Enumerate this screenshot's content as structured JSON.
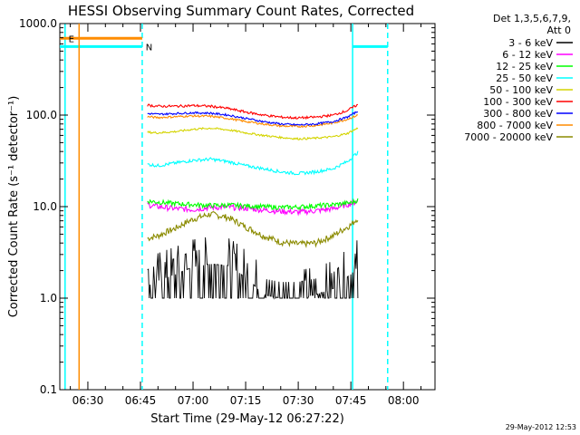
{
  "chart_data": {
    "type": "line",
    "title": "HESSI Observing Summary Count Rates, Corrected",
    "xlabel": "Start Time (29-May-12 06:27:22)",
    "ylabel": "Corrected Count Rate (s⁻¹ detector⁻¹)",
    "yscale": "log",
    "ylim": [
      0.1,
      1000.0
    ],
    "xlim": [
      "06:22",
      "08:09"
    ],
    "x_ticks": [
      "06:30",
      "06:45",
      "07:00",
      "07:15",
      "07:30",
      "07:45",
      "08:00"
    ],
    "y_ticks": [
      "0.1",
      "1.0",
      "10.0",
      "100.0",
      "1000.0"
    ],
    "legend": {
      "position": "right",
      "header": [
        "Det 1,3,5,6,7,9,",
        "Att 0"
      ]
    },
    "x_unit": "minutes after 06:00",
    "series": [
      {
        "name": "3 - 6 keV",
        "color": "#000000",
        "x": [
          47,
          50,
          55,
          60,
          65,
          70,
          73,
          76,
          80,
          85,
          90,
          95,
          100,
          105,
          107
        ],
        "y": [
          1.5,
          1.7,
          2.0,
          2.4,
          2.6,
          2.5,
          2.1,
          1.7,
          1.2,
          1.1,
          1.1,
          1.2,
          1.4,
          2.0,
          2.4
        ]
      },
      {
        "name": "6 - 12 keV",
        "color": "#ff00ff",
        "x": [
          47,
          50,
          55,
          60,
          65,
          70,
          75,
          80,
          85,
          90,
          95,
          100,
          105,
          107
        ],
        "y": [
          10.5,
          10.0,
          9.5,
          9.3,
          9.8,
          9.9,
          9.6,
          9.2,
          8.9,
          8.7,
          9.0,
          9.5,
          10.8,
          11.5
        ]
      },
      {
        "name": "12 - 25 keV",
        "color": "#00ff00",
        "x": [
          47,
          50,
          55,
          60,
          65,
          70,
          75,
          80,
          85,
          90,
          95,
          100,
          105,
          107
        ],
        "y": [
          11.5,
          11.2,
          10.8,
          10.5,
          10.3,
          10.4,
          10.2,
          10.0,
          9.8,
          9.9,
          10.2,
          10.5,
          11.0,
          11.8
        ]
      },
      {
        "name": "25 - 50 keV",
        "color": "#00ffff",
        "x": [
          47,
          50,
          55,
          60,
          65,
          70,
          75,
          80,
          85,
          90,
          95,
          100,
          104,
          107
        ],
        "y": [
          29,
          28,
          30,
          32,
          33,
          31,
          28,
          26,
          24,
          23,
          24,
          26,
          31,
          39
        ]
      },
      {
        "name": "50 - 100 keV",
        "color": "#d4d400",
        "x": [
          47,
          50,
          55,
          60,
          65,
          70,
          75,
          80,
          85,
          90,
          95,
          100,
          104,
          107
        ],
        "y": [
          65,
          64,
          66,
          70,
          72,
          69,
          64,
          60,
          57,
          55,
          56,
          58,
          63,
          72
        ]
      },
      {
        "name": "100 - 300 keV",
        "color": "#ff0000",
        "x": [
          47,
          50,
          55,
          60,
          65,
          70,
          75,
          80,
          85,
          90,
          95,
          100,
          104,
          107
        ],
        "y": [
          128,
          125,
          125,
          127,
          125,
          118,
          108,
          100,
          95,
          93,
          95,
          100,
          112,
          130
        ]
      },
      {
        "name": "300 - 800 keV",
        "color": "#0000ff",
        "x": [
          47,
          50,
          55,
          60,
          65,
          70,
          75,
          80,
          85,
          90,
          95,
          100,
          104,
          107
        ],
        "y": [
          104,
          102,
          104,
          106,
          105,
          100,
          92,
          85,
          80,
          78,
          80,
          85,
          95,
          110
        ]
      },
      {
        "name": "800 - 7000 keV",
        "color": "#ff8c00",
        "x": [
          47,
          50,
          55,
          60,
          65,
          70,
          75,
          80,
          85,
          90,
          95,
          100,
          104,
          107
        ],
        "y": [
          96,
          94,
          96,
          98,
          97,
          92,
          85,
          80,
          76,
          75,
          77,
          82,
          90,
          100
        ]
      },
      {
        "name": "7000 - 20000 keV",
        "color": "#8b8b00",
        "x": [
          47,
          50,
          55,
          60,
          65,
          70,
          75,
          80,
          85,
          90,
          95,
          100,
          105,
          107
        ],
        "y": [
          4.5,
          4.8,
          5.8,
          7.3,
          8.3,
          7.6,
          6.0,
          4.8,
          4.1,
          3.9,
          4.0,
          4.8,
          6.3,
          7.5
        ]
      }
    ],
    "markers": [
      {
        "label": "E",
        "color": "#ff8c00"
      },
      {
        "label": "N",
        "color": "#00ffff"
      }
    ]
  },
  "footer": {
    "timestamp": "29-May-2012 12:53"
  }
}
